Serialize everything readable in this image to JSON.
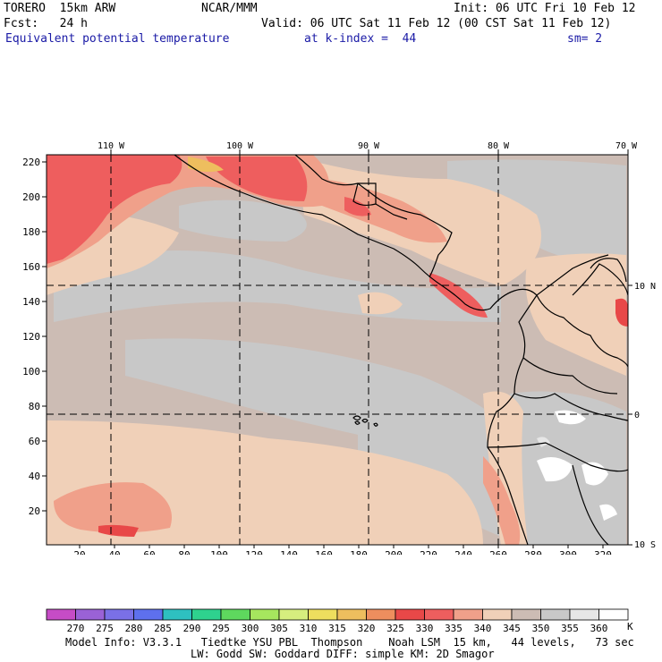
{
  "header": {
    "model": "TORERO  15km ARW",
    "center": "NCAR/MMM",
    "init": "Init: 06 UTC Fri 10 Feb 12",
    "fcst": "Fcst:   24 h",
    "valid": "Valid: 06 UTC Sat 11 Feb 12 (00 CST Sat 11 Feb 12)",
    "field": "Equivalent potential temperature",
    "level": "at k-index =  44",
    "smooth": "sm= 2"
  },
  "axes": {
    "top_lon_labels": [
      "110 W",
      "100 W",
      "90 W",
      "80 W",
      "70 W"
    ],
    "right_lat_labels": [
      "10 N",
      "0",
      "10 S"
    ],
    "left_ticks": [
      "220",
      "200",
      "180",
      "160",
      "140",
      "120",
      "100",
      "80",
      "60",
      "40",
      "20"
    ],
    "bottom_ticks": [
      "20",
      "40",
      "60",
      "80",
      "100",
      "120",
      "140",
      "160",
      "180",
      "200",
      "220",
      "240",
      "260",
      "280",
      "300",
      "320"
    ]
  },
  "colorbar": {
    "labels": [
      "270",
      "275",
      "280",
      "285",
      "290",
      "295",
      "300",
      "305",
      "310",
      "315",
      "320",
      "325",
      "330",
      "335",
      "340",
      "345",
      "350",
      "355",
      "360"
    ],
    "unit": "K",
    "colors": [
      "#c64cc6",
      "#9a62d6",
      "#7a70e6",
      "#5e70ee",
      "#2ec0c0",
      "#2ed28e",
      "#5ed85e",
      "#a6e65e",
      "#d6ee7e",
      "#eede5e",
      "#eebe5e",
      "#ee8e5e",
      "#e84848",
      "#ee5e5e",
      "#f0a08a",
      "#f0d0b8",
      "#ccbcb4",
      "#c8c8c8",
      "#e6e6e6",
      "#ffffff"
    ]
  },
  "footer": {
    "line1": "Model Info: V3.3.1   Tiedtke YSU PBL  Thompson    Noah LSM  15 km,   44 levels,   73 sec",
    "line2": "LW: Godd SW: Goddard DIFF: simple KM: 2D Smagor"
  }
}
